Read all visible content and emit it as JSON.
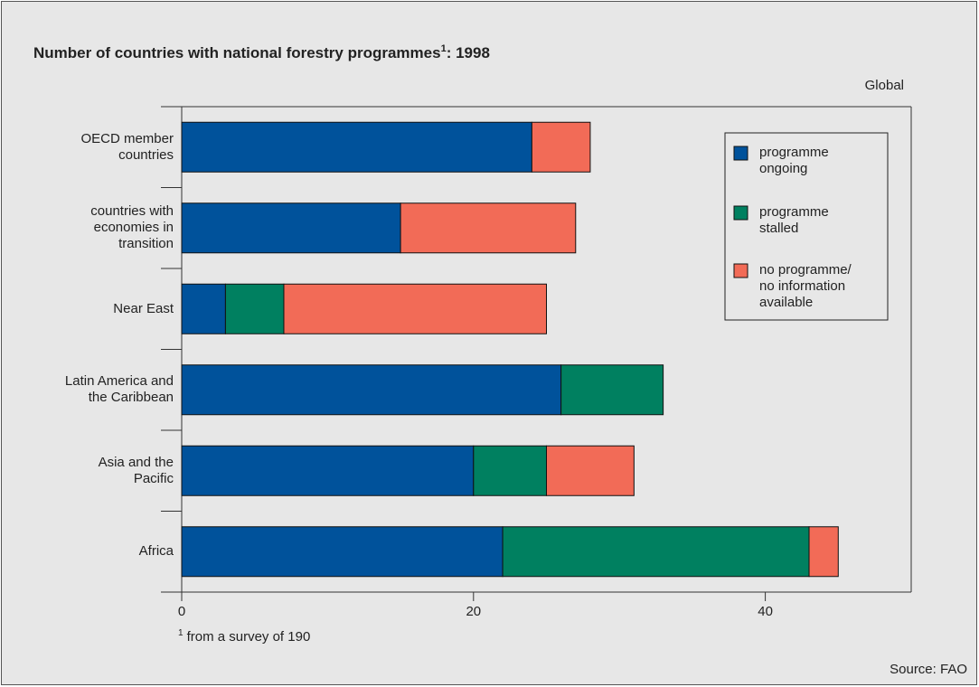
{
  "chart_data": {
    "type": "stacked_barh",
    "title": "Number of countries with national forestry programmes",
    "title_note_mark": "1",
    "title_suffix": ": 1998",
    "scope": "Global",
    "categories": [
      "OECD member\ncountries",
      "countries with\neconomies in\ntransition",
      "Near East",
      "Latin America and\nthe Caribbean",
      "Asia and the\nPacific",
      "Africa"
    ],
    "series": [
      {
        "name": "programme\nongoing",
        "color": "#00529b",
        "values": [
          24,
          15,
          3,
          26,
          20,
          22
        ]
      },
      {
        "name": "programme\nstalled",
        "color": "#008060",
        "values": [
          0,
          0,
          4,
          7,
          5,
          21
        ]
      },
      {
        "name": "no programme/\nno information\navailable",
        "color": "#f26b57",
        "values": [
          4,
          12,
          18,
          0,
          6,
          2
        ]
      }
    ],
    "xlim": [
      0,
      50
    ],
    "xticks": [
      0,
      20,
      40
    ],
    "grid": false,
    "legend": "top-right",
    "footnote_mark": "1",
    "footnote": "from a survey of 190",
    "source": "Source: FAO"
  }
}
